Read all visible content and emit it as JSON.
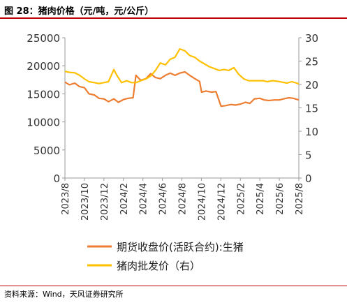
{
  "page": {
    "title": "图 28：猪肉价格（元/吨，元/公斤）",
    "source": "资料来源：Wind，天风证券研究所"
  },
  "chart_data": {
    "type": "line",
    "x_ticks": [
      "2023/8",
      "2023/10",
      "2023/12",
      "2024/2",
      "2024/4",
      "2024/6",
      "2024/8",
      "2024/10",
      "2024/12",
      "2025/2",
      "2025/4",
      "2025/6",
      "2025/8"
    ],
    "y_left": {
      "lim": [
        0,
        25000
      ],
      "ticks": [
        0,
        5000,
        10000,
        15000,
        20000,
        25000
      ]
    },
    "y_right": {
      "lim": [
        0,
        30
      ],
      "ticks": [
        0,
        5,
        10,
        15,
        20,
        25,
        30
      ]
    },
    "grid": false,
    "legend_position": "bottom",
    "series": [
      {
        "name": "期货收盘价(活跃合约):生猪",
        "axis": "left",
        "color": "#ED7D31",
        "points": [
          [
            "2023-08-01",
            17100
          ],
          [
            "2023-08-15",
            16600
          ],
          [
            "2023-09-01",
            16900
          ],
          [
            "2023-09-15",
            16300
          ],
          [
            "2023-10-01",
            16100
          ],
          [
            "2023-10-15",
            15000
          ],
          [
            "2023-11-01",
            14800
          ],
          [
            "2023-11-15",
            14200
          ],
          [
            "2023-12-01",
            14100
          ],
          [
            "2023-12-15",
            13600
          ],
          [
            "2024-01-01",
            14100
          ],
          [
            "2024-01-15",
            13500
          ],
          [
            "2024-02-01",
            14000
          ],
          [
            "2024-02-15",
            14200
          ],
          [
            "2024-03-01",
            14300
          ],
          [
            "2024-03-10",
            18300
          ],
          [
            "2024-03-25",
            17400
          ],
          [
            "2024-04-10",
            17700
          ],
          [
            "2024-04-25",
            18600
          ],
          [
            "2024-05-10",
            17900
          ],
          [
            "2024-05-25",
            17700
          ],
          [
            "2024-06-10",
            18300
          ],
          [
            "2024-06-25",
            18700
          ],
          [
            "2024-07-10",
            18300
          ],
          [
            "2024-07-25",
            18700
          ],
          [
            "2024-08-10",
            18900
          ],
          [
            "2024-08-25",
            18300
          ],
          [
            "2024-09-10",
            17700
          ],
          [
            "2024-09-25",
            17200
          ],
          [
            "2024-10-01",
            15300
          ],
          [
            "2024-10-15",
            15500
          ],
          [
            "2024-11-01",
            15300
          ],
          [
            "2024-11-15",
            15400
          ],
          [
            "2024-12-01",
            12800
          ],
          [
            "2024-12-15",
            12900
          ],
          [
            "2025-01-01",
            13100
          ],
          [
            "2025-01-15",
            13000
          ],
          [
            "2025-02-01",
            13200
          ],
          [
            "2025-02-15",
            13500
          ],
          [
            "2025-03-01",
            13300
          ],
          [
            "2025-03-15",
            14100
          ],
          [
            "2025-04-01",
            14200
          ],
          [
            "2025-04-15",
            13900
          ],
          [
            "2025-05-01",
            13800
          ],
          [
            "2025-05-15",
            13900
          ],
          [
            "2025-06-01",
            13900
          ],
          [
            "2025-06-15",
            14100
          ],
          [
            "2025-07-01",
            14300
          ],
          [
            "2025-07-15",
            14200
          ],
          [
            "2025-08-01",
            13900
          ]
        ]
      },
      {
        "name": "猪肉批发价（右）",
        "axis": "right",
        "color": "#FFC000",
        "points": [
          [
            "2023-08-01",
            22.8
          ],
          [
            "2023-08-15",
            22.6
          ],
          [
            "2023-09-01",
            22.5
          ],
          [
            "2023-09-15",
            22.0
          ],
          [
            "2023-10-01",
            21.2
          ],
          [
            "2023-10-15",
            20.6
          ],
          [
            "2023-11-01",
            20.4
          ],
          [
            "2023-11-15",
            20.2
          ],
          [
            "2023-12-01",
            20.4
          ],
          [
            "2023-12-15",
            20.6
          ],
          [
            "2024-01-01",
            23.2
          ],
          [
            "2024-01-10",
            22.0
          ],
          [
            "2024-01-25",
            20.4
          ],
          [
            "2024-02-10",
            20.8
          ],
          [
            "2024-02-25",
            20.4
          ],
          [
            "2024-03-10",
            20.4
          ],
          [
            "2024-03-25",
            20.8
          ],
          [
            "2024-04-10",
            21.2
          ],
          [
            "2024-04-25",
            21.8
          ],
          [
            "2024-05-10",
            23.0
          ],
          [
            "2024-05-25",
            24.6
          ],
          [
            "2024-06-10",
            24.2
          ],
          [
            "2024-06-25",
            25.4
          ],
          [
            "2024-07-10",
            25.8
          ],
          [
            "2024-07-25",
            27.6
          ],
          [
            "2024-08-10",
            27.2
          ],
          [
            "2024-08-25",
            26.2
          ],
          [
            "2024-09-10",
            25.8
          ],
          [
            "2024-09-25",
            25.0
          ],
          [
            "2024-10-10",
            24.4
          ],
          [
            "2024-10-25",
            23.8
          ],
          [
            "2024-11-10",
            23.4
          ],
          [
            "2024-11-25",
            23.0
          ],
          [
            "2024-12-10",
            23.2
          ],
          [
            "2024-12-25",
            23.0
          ],
          [
            "2025-01-10",
            23.6
          ],
          [
            "2025-01-25",
            22.2
          ],
          [
            "2025-02-10",
            21.2
          ],
          [
            "2025-02-25",
            20.8
          ],
          [
            "2025-03-10",
            20.8
          ],
          [
            "2025-03-25",
            20.8
          ],
          [
            "2025-04-10",
            20.8
          ],
          [
            "2025-04-25",
            20.6
          ],
          [
            "2025-05-10",
            20.8
          ],
          [
            "2025-05-25",
            20.7
          ],
          [
            "2025-06-10",
            20.5
          ],
          [
            "2025-06-25",
            20.3
          ],
          [
            "2025-07-10",
            20.6
          ],
          [
            "2025-07-25",
            20.3
          ],
          [
            "2025-08-01",
            20.1
          ]
        ]
      }
    ]
  }
}
